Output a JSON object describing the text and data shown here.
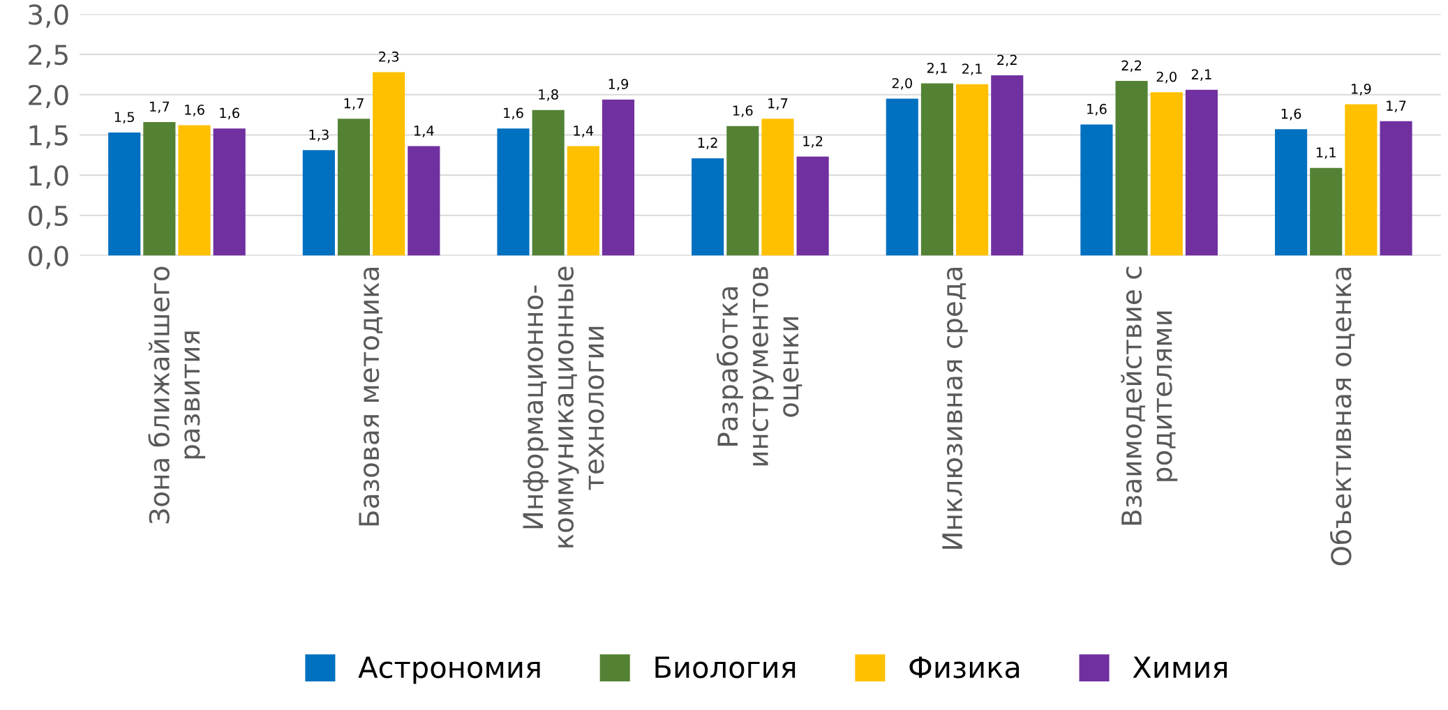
{
  "chart_data": {
    "type": "bar",
    "categories": [
      "Зона ближайшего\nразвития",
      "Базовая методика",
      "Информационно-\nкоммуникационные\nтехнологии",
      "Разработка\nинструментов\nоценки",
      "Инклюзивная среда",
      "Взаимодействие с\nродителями",
      "Объективная оценка"
    ],
    "series": [
      {
        "name": "Астрономия",
        "color": "#0070c0",
        "values": [
          1.53,
          1.31,
          1.58,
          1.21,
          1.95,
          1.63,
          1.57
        ],
        "value_labels": [
          "1,5",
          "1,3",
          "1,6",
          "1,2",
          "2,0",
          "1,6",
          "1,6"
        ]
      },
      {
        "name": "Биология",
        "color": "#548235",
        "values": [
          1.66,
          1.7,
          1.81,
          1.61,
          2.14,
          2.17,
          1.09
        ],
        "value_labels": [
          "1,7",
          "1,7",
          "1,8",
          "1,6",
          "2,1",
          "2,2",
          "1,1"
        ]
      },
      {
        "name": "Физика",
        "color": "#ffc000",
        "values": [
          1.62,
          2.28,
          1.36,
          1.7,
          2.13,
          2.03,
          1.88
        ],
        "value_labels": [
          "1,6",
          "2,3",
          "1,4",
          "1,7",
          "2,1",
          "2,0",
          "1,9"
        ]
      },
      {
        "name": "Химия",
        "color": "#7030a0",
        "values": [
          1.58,
          1.36,
          1.94,
          1.23,
          2.24,
          2.06,
          1.67
        ],
        "value_labels": [
          "1,6",
          "1,4",
          "1,9",
          "1,2",
          "2,2",
          "2,1",
          "1,7"
        ]
      }
    ],
    "ylim": [
      0,
      3
    ],
    "yticks": [
      {
        "value": 0,
        "label": "0,0"
      },
      {
        "value": 0.5,
        "label": "0,5"
      },
      {
        "value": 1,
        "label": "1,0"
      },
      {
        "value": 1.5,
        "label": "1,5"
      },
      {
        "value": 2,
        "label": "2,0"
      },
      {
        "value": 2.5,
        "label": "2,5"
      },
      {
        "value": 3,
        "label": "3,0"
      }
    ],
    "grid": "y",
    "legend": "bottom"
  }
}
